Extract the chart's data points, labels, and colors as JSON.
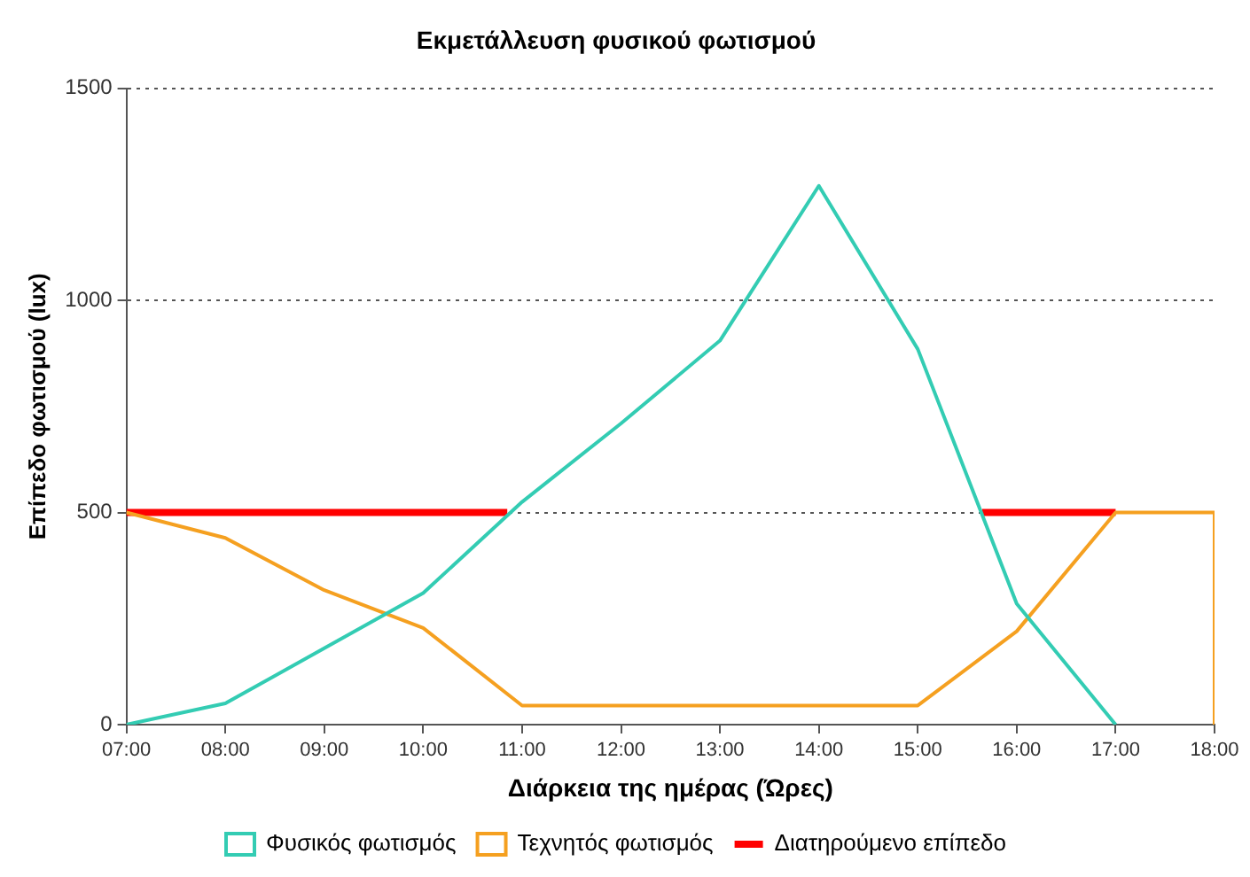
{
  "chart_data": {
    "type": "line",
    "title": "Εκμετάλλευση φυσικού φωτισμού",
    "xlabel": "Διάρκεια της ημέρας (Ώρες)",
    "ylabel": "Επίπεδο φωτισμού (lux)",
    "xlim": [
      7,
      18
    ],
    "xticks": [
      {
        "value": 7,
        "label": "07:00"
      },
      {
        "value": 8,
        "label": "08:00"
      },
      {
        "value": 9,
        "label": "09:00"
      },
      {
        "value": 10,
        "label": "10:00"
      },
      {
        "value": 11,
        "label": "11:00"
      },
      {
        "value": 12,
        "label": "12:00"
      },
      {
        "value": 13,
        "label": "13:00"
      },
      {
        "value": 14,
        "label": "14:00"
      },
      {
        "value": 15,
        "label": "15:00"
      },
      {
        "value": 16,
        "label": "16:00"
      },
      {
        "value": 17,
        "label": "17:00"
      },
      {
        "value": 18,
        "label": "18:00"
      }
    ],
    "ylim": [
      0,
      1500
    ],
    "yticks": [
      0,
      500,
      1000,
      1500
    ],
    "grid": "y",
    "legend": "bottom",
    "marker": "none",
    "line_style": "solid",
    "series": [
      {
        "name": "Φυσικός φωτισμός",
        "color": "#33ccb3",
        "x": [
          7,
          8,
          9,
          10,
          11,
          12,
          13,
          14,
          15,
          16,
          17
        ],
        "values": [
          0,
          50,
          180,
          310,
          525,
          710,
          905,
          1270,
          885,
          285,
          0
        ]
      },
      {
        "name": "Τεχνητός φωτισμός",
        "color": "#f5a020",
        "x": [
          7,
          8,
          9,
          10,
          11,
          12,
          13,
          14,
          15,
          16,
          17,
          18,
          18
        ],
        "values": [
          500,
          440,
          317,
          228,
          45,
          45,
          45,
          45,
          45,
          220,
          500,
          500,
          0
        ]
      },
      {
        "name": "Διατηρούμενο επίπεδο",
        "color": "#ff0000",
        "x": [
          7,
          10.85,
          13,
          15.65,
          17
        ],
        "values": [
          500,
          500,
          null,
          500,
          500
        ]
      }
    ]
  }
}
